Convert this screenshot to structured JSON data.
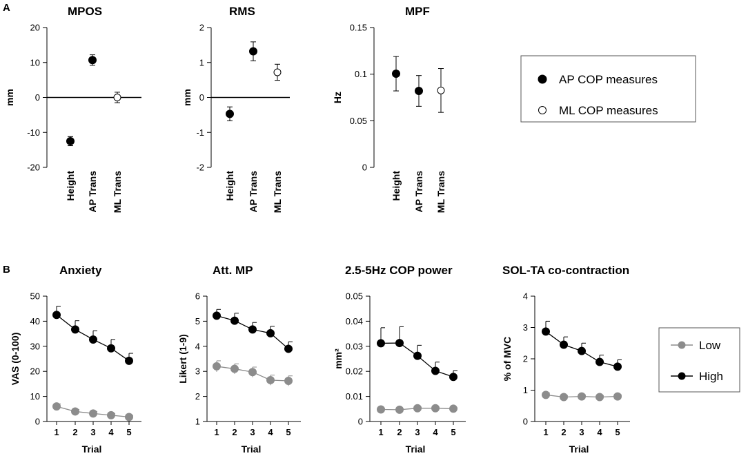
{
  "panel_labels": {
    "a": "A",
    "b": "B"
  },
  "legend_a": {
    "items": [
      {
        "label": "AP COP measures",
        "marker": "filled"
      },
      {
        "label": "ML COP measures",
        "marker": "open"
      }
    ]
  },
  "legend_b": {
    "items": [
      {
        "label": "Low",
        "color": "#8c8c8c"
      },
      {
        "label": "High",
        "color": "#000000"
      }
    ]
  },
  "chart_data": [
    {
      "id": "mpos",
      "type": "scatter",
      "title": "MPOS",
      "ylabel": "mm",
      "xlabel": "",
      "categories": [
        "Height",
        "AP Trans",
        "ML Trans"
      ],
      "y": [
        -12.5,
        10.7,
        0
      ],
      "err": [
        1.3,
        1.5,
        1.5
      ],
      "markers": [
        "filled",
        "filled",
        "open"
      ],
      "ylim": [
        -20,
        20
      ],
      "yticks": [
        20,
        10,
        0,
        -10,
        -20
      ],
      "tick_labels": [
        "20",
        "10",
        "0",
        "-10",
        "-20"
      ],
      "zero_line": true
    },
    {
      "id": "rms",
      "type": "scatter",
      "title": "RMS",
      "ylabel": "mm",
      "xlabel": "",
      "categories": [
        "Height",
        "AP Trans",
        "ML Trans"
      ],
      "y": [
        -0.47,
        1.32,
        0.72
      ],
      "err": [
        0.2,
        0.27,
        0.23
      ],
      "markers": [
        "filled",
        "filled",
        "open"
      ],
      "ylim": [
        -2,
        2
      ],
      "yticks": [
        2,
        1,
        0,
        -1,
        -2
      ],
      "tick_labels": [
        "2",
        "1",
        "0",
        "-1",
        "-2"
      ],
      "zero_line": true
    },
    {
      "id": "mpf",
      "type": "scatter",
      "title": "MPF",
      "ylabel": "Hz",
      "xlabel": "",
      "categories": [
        "Height",
        "AP Trans",
        "ML Trans"
      ],
      "y": [
        0.1005,
        0.082,
        0.0825
      ],
      "err": [
        0.0185,
        0.0165,
        0.0235
      ],
      "markers": [
        "filled",
        "filled",
        "open"
      ],
      "ylim": [
        0,
        0.15
      ],
      "yticks": [
        0.15,
        0.1,
        0.05,
        0
      ],
      "tick_labels": [
        "0.15",
        "0.1",
        "0.05",
        "0"
      ],
      "zero_line": false
    },
    {
      "id": "anxiety",
      "type": "line",
      "title": "Anxiety",
      "ylabel": "VAS (0-100)",
      "xlabel": "Trial",
      "x": [
        1,
        2,
        3,
        4,
        5
      ],
      "series": [
        {
          "name": "Low",
          "values": [
            6,
            4,
            3.2,
            2.5,
            1.8
          ],
          "err": [
            1,
            0.8,
            0.8,
            0.7,
            0.6
          ]
        },
        {
          "name": "High",
          "values": [
            42.5,
            36.7,
            32.7,
            29.2,
            24.2
          ],
          "err": [
            3.5,
            3.5,
            3.5,
            3.5,
            3
          ]
        }
      ],
      "ylim": [
        0,
        50
      ],
      "yticks": [
        50,
        40,
        30,
        20,
        10,
        0
      ],
      "tick_labels": [
        "50",
        "40",
        "30",
        "20",
        "10",
        "0"
      ]
    },
    {
      "id": "attmp",
      "type": "line",
      "title": "Att. MP",
      "ylabel": "Likert (1-9)",
      "xlabel": "Trial",
      "x": [
        1,
        2,
        3,
        4,
        5
      ],
      "series": [
        {
          "name": "Low",
          "values": [
            3.2,
            3.1,
            2.97,
            2.65,
            2.62
          ],
          "err": [
            0.22,
            0.2,
            0.2,
            0.2,
            0.2
          ]
        },
        {
          "name": "High",
          "values": [
            5.22,
            5.02,
            4.67,
            4.52,
            3.9
          ],
          "err": [
            0.25,
            0.3,
            0.28,
            0.28,
            0.28
          ]
        }
      ],
      "ylim": [
        1,
        6
      ],
      "yticks": [
        6,
        5,
        4,
        3,
        2,
        1
      ],
      "tick_labels": [
        "6",
        "5",
        "4",
        "3",
        "2",
        "1"
      ]
    },
    {
      "id": "copp",
      "type": "line",
      "title": "2.5-5Hz COP power",
      "ylabel": "mm²",
      "xlabel": "Trial",
      "x": [
        1,
        2,
        3,
        4,
        5
      ],
      "series": [
        {
          "name": "Low",
          "values": [
            0.0048,
            0.0047,
            0.0053,
            0.0053,
            0.0051
          ],
          "err": [
            0.0004,
            0.0004,
            0.0004,
            0.0004,
            0.0004
          ]
        },
        {
          "name": "High",
          "values": [
            0.0312,
            0.0313,
            0.0262,
            0.0202,
            0.0178
          ],
          "err": [
            0.0062,
            0.0065,
            0.0042,
            0.0035,
            0.0025
          ]
        }
      ],
      "ylim": [
        0,
        0.05
      ],
      "yticks": [
        0.05,
        0.04,
        0.03,
        0.02,
        0.01,
        0
      ],
      "tick_labels": [
        "0.05",
        "0.04",
        "0.03",
        "0.02",
        "0.01",
        "0"
      ]
    },
    {
      "id": "solta",
      "type": "line",
      "title": "SOL-TA co-contraction",
      "ylabel": "% of MVC",
      "xlabel": "Trial",
      "x": [
        1,
        2,
        3,
        4,
        5
      ],
      "series": [
        {
          "name": "Low",
          "values": [
            0.85,
            0.78,
            0.8,
            0.78,
            0.8
          ],
          "err": [
            0.06,
            0.05,
            0.05,
            0.05,
            0.05
          ]
        },
        {
          "name": "High",
          "values": [
            2.87,
            2.45,
            2.25,
            1.9,
            1.75
          ],
          "err": [
            0.33,
            0.25,
            0.25,
            0.22,
            0.22
          ]
        }
      ],
      "ylim": [
        0,
        4
      ],
      "yticks": [
        4,
        3,
        2,
        1,
        0
      ],
      "tick_labels": [
        "4",
        "3",
        "2",
        "1",
        "0"
      ]
    }
  ]
}
